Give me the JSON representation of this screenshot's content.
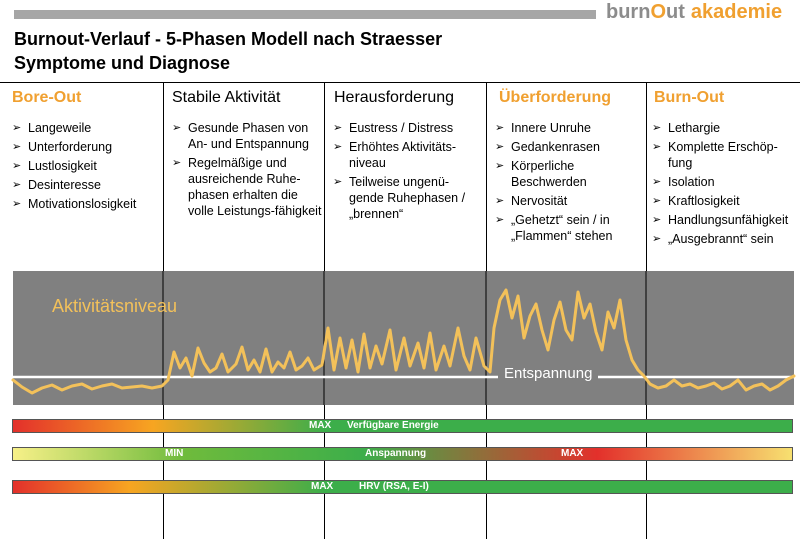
{
  "logo": {
    "part1": "burn",
    "part2": "O",
    "part3": "ut",
    "part4": "akademie"
  },
  "title": {
    "line1": "Burnout-Verlauf - 5-Phasen Modell nach Straesser",
    "line2": "Symptome und Diagnose"
  },
  "phases": [
    {
      "title": "Bore-Out",
      "items": [
        "Langeweile",
        "Unterforderung",
        "Lustlosigkeit",
        "Desinteresse",
        "Motivationslosigkeit"
      ]
    },
    {
      "title": "Stabile Aktivität",
      "items": [
        "Gesunde Phasen von An- und Entspannung",
        "Regelmäßige und ausreichende Ruhe-phasen erhalten die volle Leistungs-fähigkeit"
      ]
    },
    {
      "title": "Herausforderung",
      "items": [
        "Eustress / Distress",
        "Erhöhtes Aktivitäts-niveau",
        "Teilweise ungenü-gende Ruhephasen / „brennen“"
      ]
    },
    {
      "title": "Überforderung",
      "items": [
        "Innere Unruhe",
        "Gedankenrasen",
        "Körperliche Beschwerden",
        "Nervosität",
        "„Gehetzt“ sein / in „Flammen“ stehen"
      ]
    },
    {
      "title": "Burn-Out",
      "items": [
        "Lethargie",
        "Komplette Erschöp-fung",
        "Isolation",
        "Kraftlosigkeit",
        "Handlungsunfähigkeit",
        "„Ausgebrannt“ sein"
      ]
    }
  ],
  "chart": {
    "activity_label": "Aktivitätsniveau",
    "baseline_label": "Entspannung"
  },
  "bars": [
    {
      "max": "MAX",
      "label": "Verfügbare Energie"
    },
    {
      "min": "MIN",
      "label": "Anspannung",
      "max": "MAX"
    },
    {
      "max": "MAX",
      "label": "HRV (RSA, E-I)"
    }
  ],
  "colors": {
    "accent_orange": "#f0a030",
    "wave_yellow": "#f3c15a",
    "panel_gray": "#808080"
  }
}
